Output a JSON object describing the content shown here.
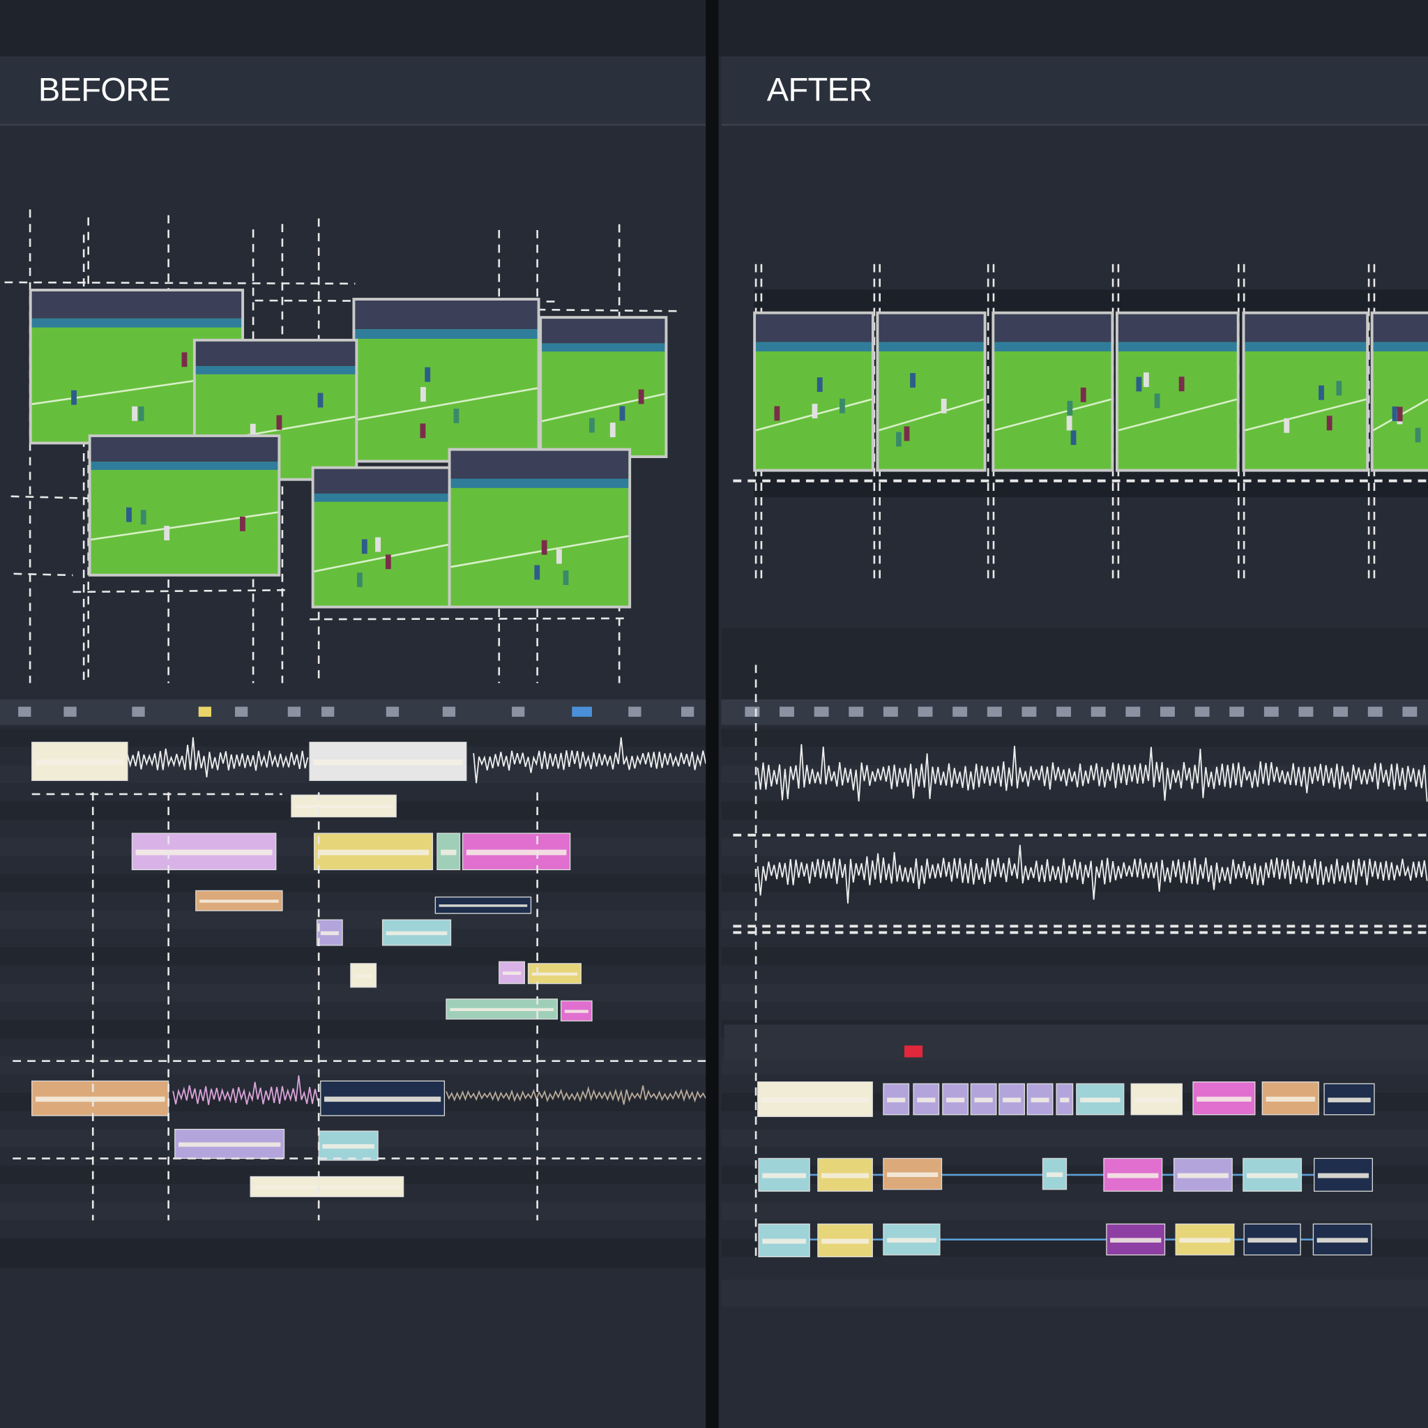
{
  "panels": [
    {
      "title": "BEFORE"
    },
    {
      "title": "AFTER"
    }
  ]
}
